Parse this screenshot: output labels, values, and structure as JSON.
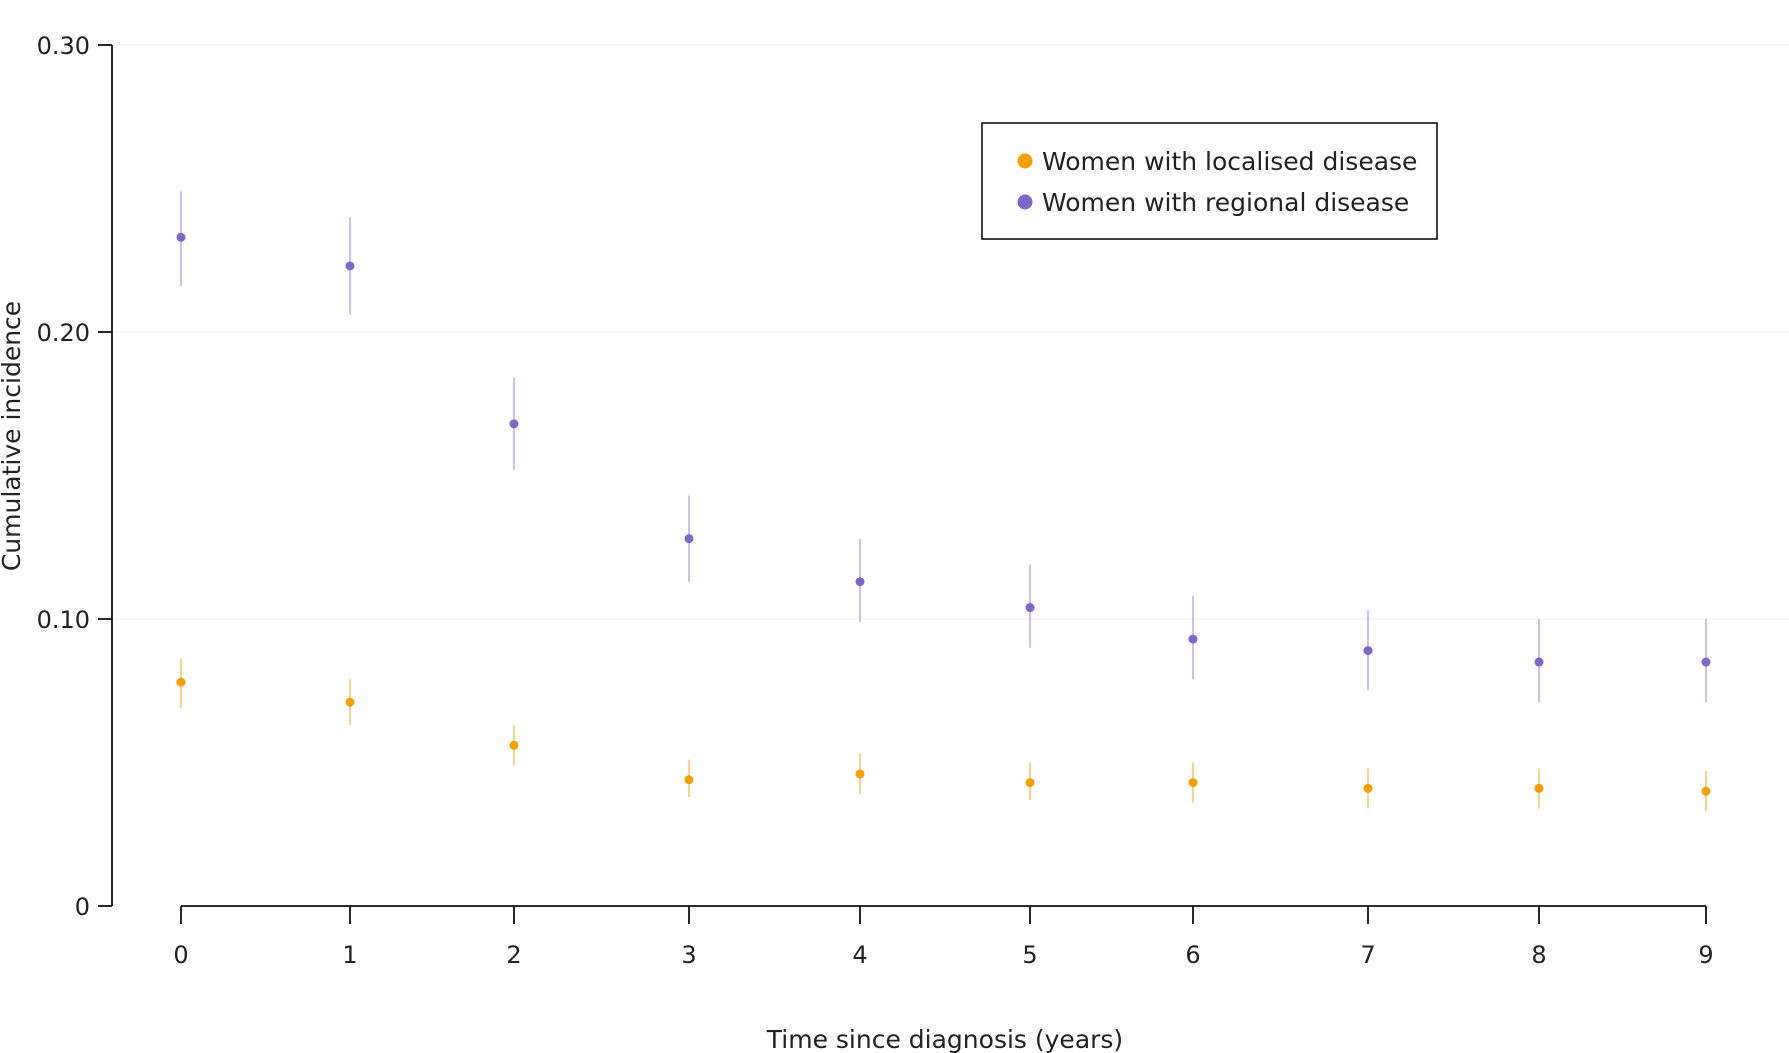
{
  "chart_data": {
    "type": "scatter",
    "title": "",
    "xlabel": "Time since diagnosis (years)",
    "ylabel": "Cumulative incidence",
    "x": [
      0,
      1,
      2,
      3,
      4,
      5,
      6,
      7,
      8,
      9
    ],
    "xticks": [
      "0",
      "1",
      "2",
      "3",
      "4",
      "5",
      "6",
      "7",
      "8",
      "9"
    ],
    "yticks": [
      {
        "value": 0,
        "label": "0"
      },
      {
        "value": 0.1,
        "label": "0.10"
      },
      {
        "value": 0.2,
        "label": "0.20"
      },
      {
        "value": 0.3,
        "label": "0.30"
      }
    ],
    "ylim": [
      0,
      0.3
    ],
    "grid": "horizontal",
    "legend_position": "top-right",
    "series": [
      {
        "name": "Women with localised disease",
        "color": "#f5a000",
        "values": [
          0.078,
          0.071,
          0.056,
          0.044,
          0.046,
          0.043,
          0.043,
          0.041,
          0.041,
          0.04
        ],
        "ci_low": [
          0.069,
          0.063,
          0.049,
          0.038,
          0.039,
          0.037,
          0.036,
          0.034,
          0.034,
          0.033
        ],
        "ci_high": [
          0.086,
          0.079,
          0.063,
          0.051,
          0.053,
          0.05,
          0.05,
          0.048,
          0.048,
          0.047
        ]
      },
      {
        "name": "Women with regional disease",
        "color": "#7b68c8",
        "values": [
          0.233,
          0.223,
          0.168,
          0.128,
          0.113,
          0.104,
          0.093,
          0.089,
          0.085,
          0.085
        ],
        "ci_low": [
          0.216,
          0.206,
          0.152,
          0.113,
          0.099,
          0.09,
          0.079,
          0.075,
          0.071,
          0.071
        ],
        "ci_high": [
          0.249,
          0.24,
          0.184,
          0.143,
          0.128,
          0.119,
          0.108,
          0.103,
          0.1,
          0.1
        ]
      }
    ]
  }
}
